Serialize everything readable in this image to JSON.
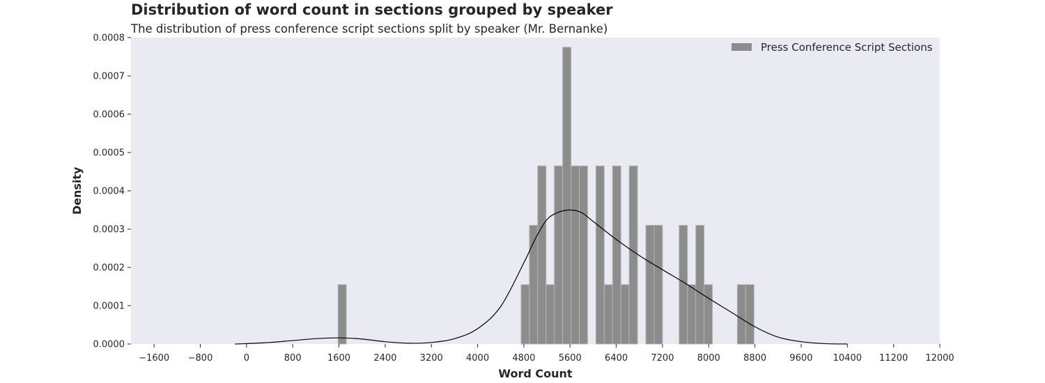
{
  "chart_data": {
    "type": "bar",
    "title": "Distribution of word count in sections grouped by speaker",
    "subtitle": "The distribution of press conference script sections split by speaker (Mr. Bernanke)",
    "xlabel": "Word Count",
    "ylabel": "Density",
    "xlim": [
      -2000,
      12000
    ],
    "ylim": [
      0,
      0.0008
    ],
    "x_ticks": [
      "−1600",
      "−800",
      "0",
      "800",
      "1600",
      "2400",
      "3200",
      "4000",
      "4800",
      "5600",
      "6400",
      "7200",
      "8000",
      "8800",
      "9600",
      "10400",
      "11200",
      "12000"
    ],
    "x_tick_values": [
      -1600,
      -800,
      0,
      800,
      1600,
      2400,
      3200,
      4000,
      4800,
      5600,
      6400,
      7200,
      8000,
      8800,
      9600,
      10400,
      11200,
      12000
    ],
    "y_ticks": [
      "0.0000",
      "0.0001",
      "0.0002",
      "0.0003",
      "0.0004",
      "0.0005",
      "0.0006",
      "0.0007",
      "0.0008"
    ],
    "y_tick_values": [
      0,
      0.0001,
      0.0002,
      0.0003,
      0.0004,
      0.0005,
      0.0006,
      0.0007,
      0.0008
    ],
    "grid": false,
    "legend_position": "top-right",
    "colors": {
      "bar": "#8c8c8c",
      "bar_edge": "#b4b4b8",
      "kde": "#000000",
      "background": "#eaeaf2"
    },
    "series": [
      {
        "name": "Press Conference Script Sections",
        "kind": "histogram",
        "bin_width": 144,
        "bins": [
          {
            "x0": 1584,
            "density": 0.000155
          },
          {
            "x0": 4752,
            "density": 0.000155
          },
          {
            "x0": 4896,
            "density": 0.00031
          },
          {
            "x0": 5040,
            "density": 0.000465
          },
          {
            "x0": 5184,
            "density": 0.000155
          },
          {
            "x0": 5328,
            "density": 0.000465
          },
          {
            "x0": 5472,
            "density": 0.000775
          },
          {
            "x0": 5616,
            "density": 0.000465
          },
          {
            "x0": 5760,
            "density": 0.000465
          },
          {
            "x0": 6048,
            "density": 0.000465
          },
          {
            "x0": 6192,
            "density": 0.000155
          },
          {
            "x0": 6336,
            "density": 0.000465
          },
          {
            "x0": 6480,
            "density": 0.000155
          },
          {
            "x0": 6624,
            "density": 0.000465
          },
          {
            "x0": 6912,
            "density": 0.00031
          },
          {
            "x0": 7056,
            "density": 0.00031
          },
          {
            "x0": 7488,
            "density": 0.00031
          },
          {
            "x0": 7632,
            "density": 0.000155
          },
          {
            "x0": 7776,
            "density": 0.00031
          },
          {
            "x0": 7920,
            "density": 0.000155
          },
          {
            "x0": 8496,
            "density": 0.000155
          },
          {
            "x0": 8640,
            "density": 0.000155
          }
        ]
      },
      {
        "kind": "kde",
        "x": [
          -200,
          0,
          400,
          800,
          1200,
          1600,
          2000,
          2400,
          2800,
          3200,
          3600,
          4000,
          4400,
          4800,
          5000,
          5200,
          5400,
          5600,
          5800,
          6000,
          6400,
          6800,
          7200,
          7600,
          8000,
          8400,
          8800,
          9200,
          9600,
          10000,
          10400
        ],
        "y": [
          0,
          1e-06,
          4e-06,
          9e-06,
          1.4e-05,
          1.6e-05,
          1.3e-05,
          6e-06,
          2e-06,
          4e-06,
          1.4e-05,
          4e-05,
          9.8e-05,
          0.000212,
          0.000275,
          0.000325,
          0.000344,
          0.00035,
          0.000343,
          0.00032,
          0.000273,
          0.000231,
          0.000194,
          0.000158,
          0.000119,
          8.2e-05,
          4.5e-05,
          1.8e-05,
          6e-06,
          1e-06,
          0
        ]
      }
    ]
  }
}
